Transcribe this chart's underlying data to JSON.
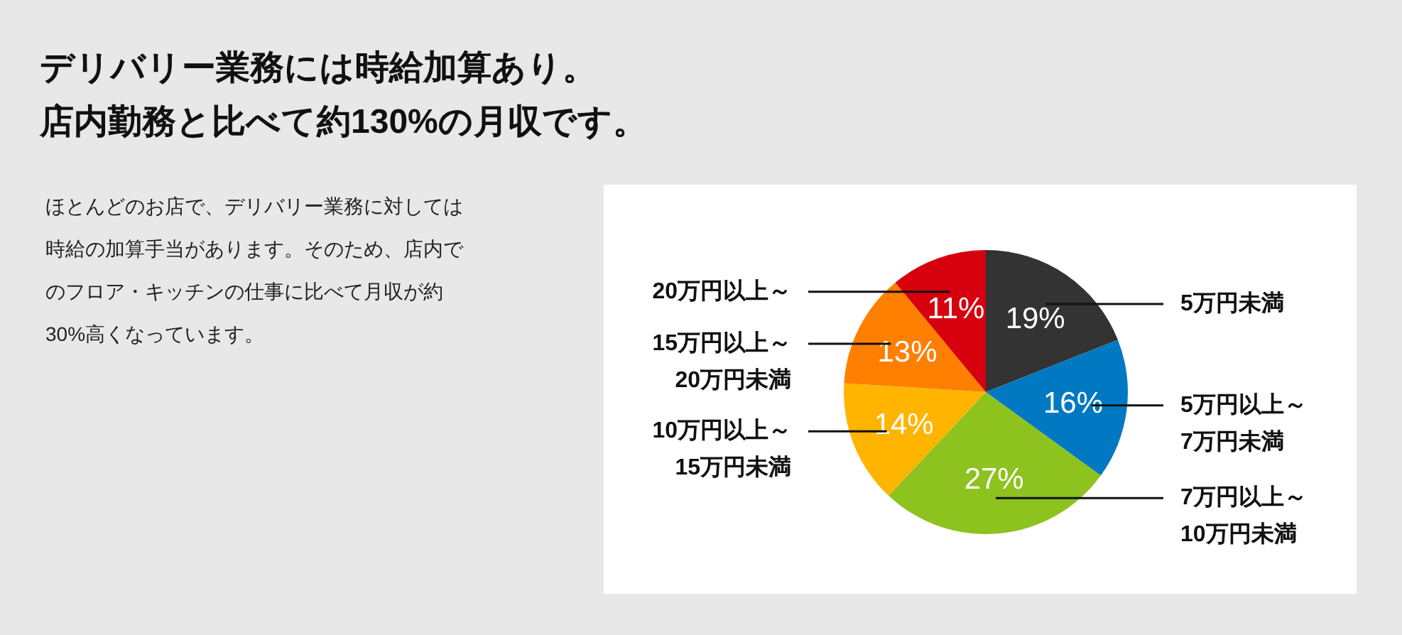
{
  "chart_data": {
    "type": "pie",
    "title": "デリバリー業務には時給加算あり。",
    "subtitle": "店内勤務と比べて約130%の月収です。",
    "annotations": [
      "ほとんどのお店で、デリバリー業務に対しては時給の加算手当があります。そのため、店内でのフロア・キッチンの仕事に比べて月収が約30%高くなっています。"
    ],
    "categories": [
      "5万円未満",
      "5万円以上～\n7万円未満",
      "7万円以上～\n10万円未満",
      "10万円以上～\n15万円未満",
      "15万円以上～\n20万円未満",
      "20万円以上～"
    ],
    "values": [
      19,
      16,
      27,
      14,
      13,
      11
    ],
    "value_labels": [
      "19%",
      "16%",
      "27%",
      "14%",
      "13%",
      "11%"
    ],
    "colors": [
      "#333333",
      "#0079c2",
      "#8dc21f",
      "#ffb400",
      "#ff7f00",
      "#d7000f"
    ]
  }
}
